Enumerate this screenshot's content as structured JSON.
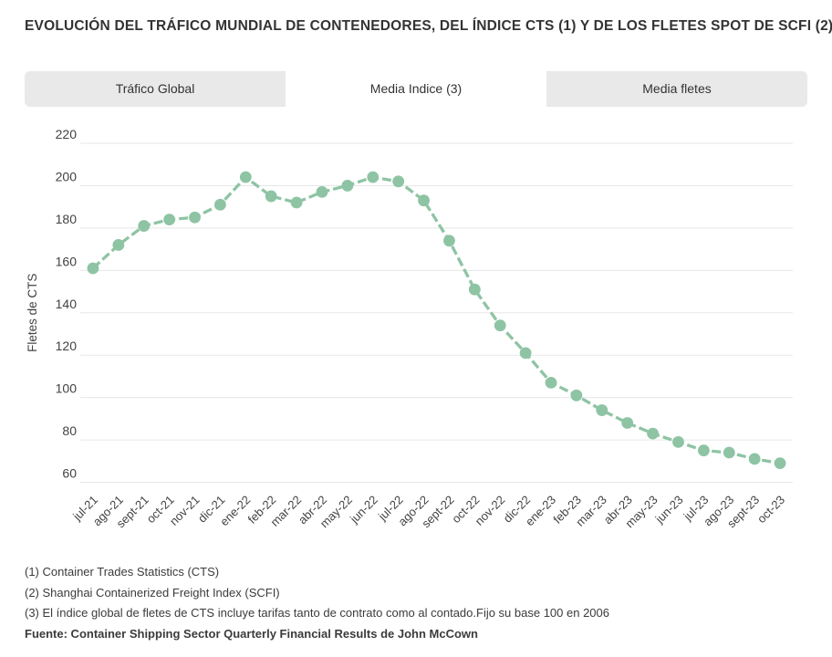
{
  "header": {
    "title": "EVOLUCIÓN DEL TRÁFICO MUNDIAL DE CONTENEDORES, DEL ÍNDICE CTS (1) Y DE LOS FLETES SPOT DE SCFI (2)"
  },
  "tabs": [
    {
      "label": "Tráfico Global",
      "active": false
    },
    {
      "label": "Media Indice (3)",
      "active": true
    },
    {
      "label": "Media fletes",
      "active": false
    }
  ],
  "chart_data": {
    "type": "line",
    "title": "",
    "xlabel": "",
    "ylabel": "Fletes de CTS",
    "ylim": [
      60,
      220
    ],
    "ytick_step": 20,
    "yticks": [
      220,
      200,
      180,
      160,
      140,
      120,
      100,
      80,
      60
    ],
    "grid": true,
    "legend": "none",
    "line_color": "#8ec4a4",
    "point_color": "#8ec4a4",
    "categories": [
      "jul-21",
      "ago-21",
      "sept-21",
      "oct-21",
      "nov-21",
      "dic-21",
      "ene-22",
      "feb-22",
      "mar-22",
      "abr-22",
      "may-22",
      "jun-22",
      "jul-22",
      "ago-22",
      "sept-22",
      "oct-22",
      "nov-22",
      "dic-22",
      "ene-23",
      "feb-23",
      "mar-23",
      "abr-23",
      "may-23",
      "jun-23",
      "jul-23",
      "ago-23",
      "sept-23",
      "oct-23"
    ],
    "values": [
      161,
      172,
      181,
      184,
      185,
      191,
      204,
      195,
      192,
      197,
      200,
      204,
      202,
      193,
      174,
      151,
      134,
      121,
      107,
      101,
      94,
      88,
      83,
      79,
      75,
      74,
      71,
      69
    ]
  },
  "footnotes": [
    "(1) Container Trades Statistics (CTS)",
    "(2) Shanghai Containerized Freight Index (SCFI)",
    "(3) El índice global de fletes de CTS incluye tarifas tanto de contrato como al contado.Fijo su base 100 en 2006"
  ],
  "source": "Fuente: Container Shipping Sector Quarterly Financial Results de John McCown"
}
